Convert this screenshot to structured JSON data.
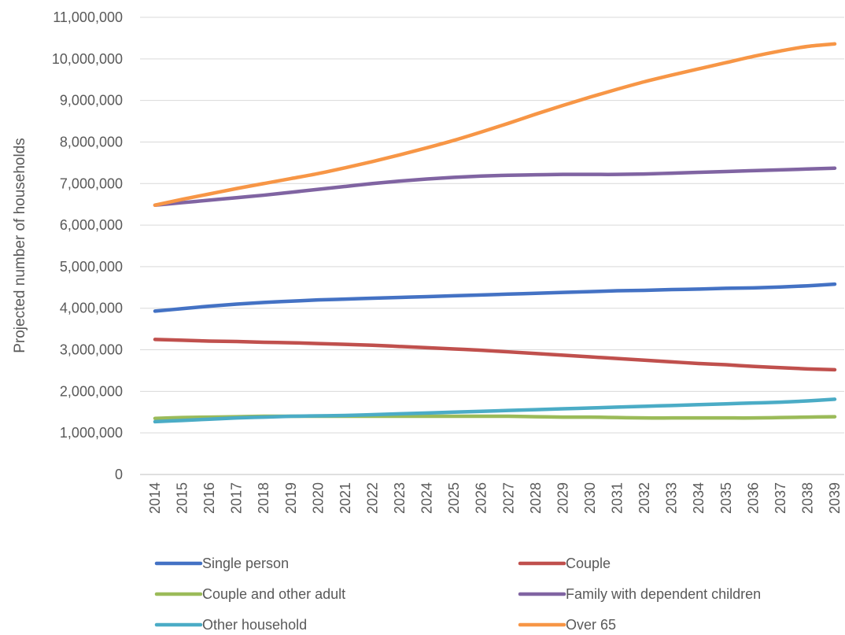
{
  "chart_data": {
    "type": "line",
    "title": "",
    "xlabel": "",
    "ylabel": "Projected number of households",
    "ylim": [
      0,
      11000000
    ],
    "yticks": [
      0,
      1000000,
      2000000,
      3000000,
      4000000,
      5000000,
      6000000,
      7000000,
      8000000,
      9000000,
      10000000,
      11000000
    ],
    "ytick_labels": [
      "0",
      "1,000,000",
      "2,000,000",
      "3,000,000",
      "4,000,000",
      "5,000,000",
      "6,000,000",
      "7,000,000",
      "8,000,000",
      "9,000,000",
      "10,000,000",
      "11,000,000"
    ],
    "grid": true,
    "legend_position": "bottom",
    "x": [
      "2014",
      "2015",
      "2016",
      "2017",
      "2018",
      "2019",
      "2020",
      "2021",
      "2022",
      "2023",
      "2024",
      "2025",
      "2026",
      "2027",
      "2028",
      "2029",
      "2030",
      "2031",
      "2032",
      "2033",
      "2034",
      "2035",
      "2036",
      "2037",
      "2038",
      "2039"
    ],
    "series": [
      {
        "name": "Single person",
        "color": "#4472C4",
        "values": [
          3930000,
          3990000,
          4050000,
          4100000,
          4140000,
          4170000,
          4200000,
          4220000,
          4240000,
          4260000,
          4280000,
          4300000,
          4320000,
          4340000,
          4360000,
          4380000,
          4400000,
          4420000,
          4430000,
          4450000,
          4460000,
          4480000,
          4490000,
          4510000,
          4540000,
          4580000
        ]
      },
      {
        "name": "Couple",
        "color": "#C0504D",
        "values": [
          3250000,
          3230000,
          3210000,
          3200000,
          3180000,
          3170000,
          3150000,
          3130000,
          3110000,
          3080000,
          3050000,
          3020000,
          2990000,
          2950000,
          2910000,
          2870000,
          2830000,
          2790000,
          2750000,
          2710000,
          2670000,
          2640000,
          2600000,
          2570000,
          2540000,
          2520000
        ]
      },
      {
        "name": "Couple and other adult",
        "color": "#9BBB59",
        "values": [
          1350000,
          1370000,
          1380000,
          1390000,
          1400000,
          1400000,
          1400000,
          1400000,
          1400000,
          1400000,
          1400000,
          1400000,
          1400000,
          1400000,
          1390000,
          1380000,
          1380000,
          1370000,
          1360000,
          1360000,
          1360000,
          1360000,
          1360000,
          1370000,
          1380000,
          1390000
        ]
      },
      {
        "name": "Family with dependent children",
        "color": "#8064A2",
        "values": [
          6480000,
          6540000,
          6600000,
          6660000,
          6720000,
          6790000,
          6860000,
          6930000,
          7000000,
          7060000,
          7110000,
          7150000,
          7180000,
          7200000,
          7210000,
          7220000,
          7220000,
          7220000,
          7230000,
          7250000,
          7270000,
          7290000,
          7310000,
          7330000,
          7350000,
          7370000
        ]
      },
      {
        "name": "Other household",
        "color": "#4BACC6",
        "values": [
          1270000,
          1300000,
          1330000,
          1360000,
          1380000,
          1400000,
          1410000,
          1420000,
          1440000,
          1460000,
          1480000,
          1500000,
          1520000,
          1540000,
          1560000,
          1580000,
          1600000,
          1620000,
          1640000,
          1660000,
          1680000,
          1700000,
          1720000,
          1740000,
          1770000,
          1810000
        ]
      },
      {
        "name": "Over 65",
        "color": "#F79646",
        "values": [
          6480000,
          6620000,
          6750000,
          6880000,
          7000000,
          7120000,
          7240000,
          7380000,
          7530000,
          7690000,
          7860000,
          8040000,
          8240000,
          8450000,
          8670000,
          8880000,
          9080000,
          9270000,
          9450000,
          9610000,
          9760000,
          9910000,
          10060000,
          10190000,
          10300000,
          10360000
        ]
      }
    ]
  }
}
